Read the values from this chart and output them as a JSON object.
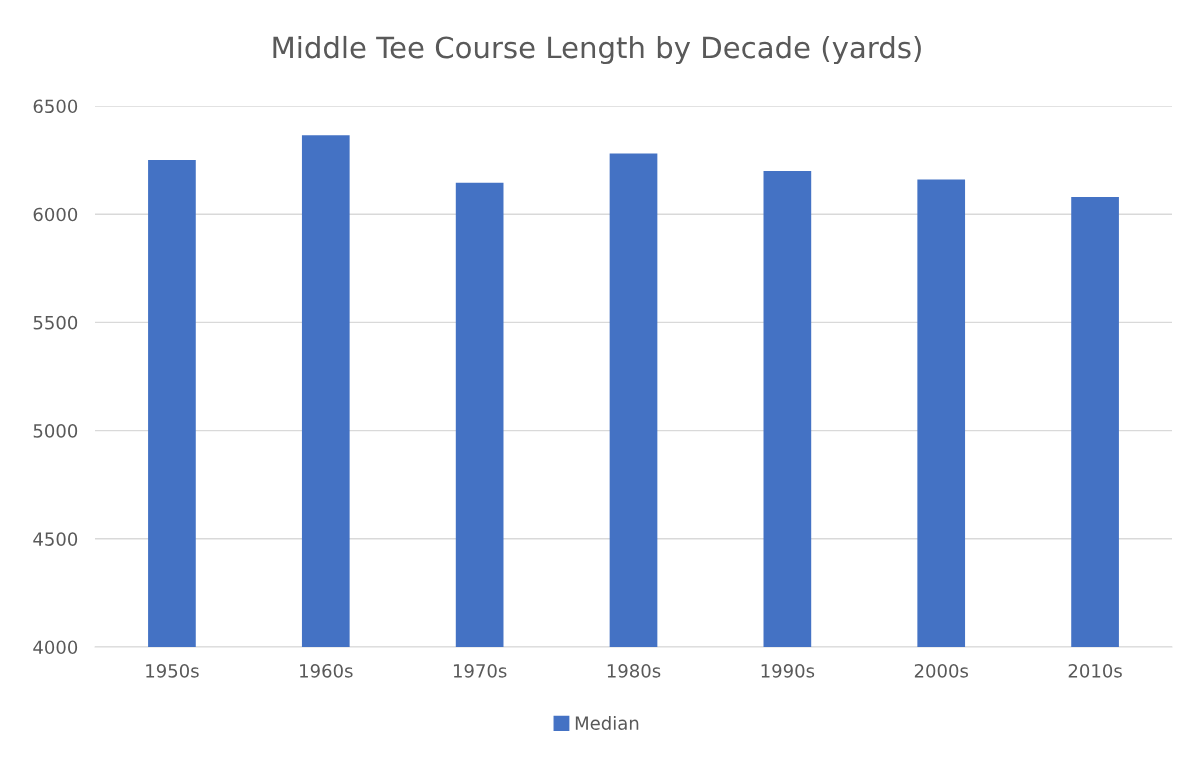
{
  "chart_data": {
    "type": "bar",
    "title": "Middle Tee Course Length by Decade (yards)",
    "categories": [
      "1950s",
      "1960s",
      "1970s",
      "1980s",
      "1990s",
      "2000s",
      "2010s"
    ],
    "series": [
      {
        "name": "Median",
        "color": "#4472c4",
        "values": [
          6250,
          6365,
          6145,
          6280,
          6200,
          6160,
          6080
        ]
      }
    ],
    "ylim": [
      4000,
      6500
    ],
    "yticks": [
      4000,
      4500,
      5000,
      5500,
      6000,
      6500
    ],
    "grid": "y",
    "legend": "bottom"
  }
}
